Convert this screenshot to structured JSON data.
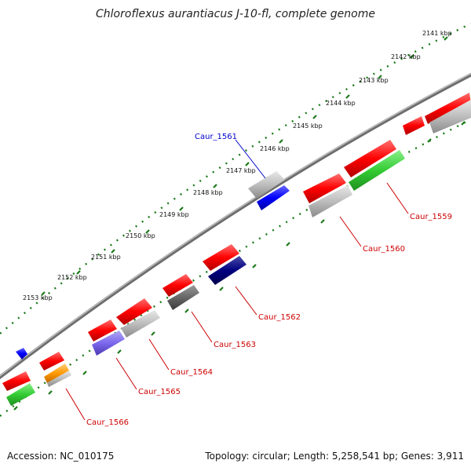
{
  "title": "Chloroflexus aurantiacus J-10-fl, complete genome",
  "footer": {
    "accession": "Accession: NC_010175",
    "topology": "Topology: circular; Length: 5,258,541 bp; Genes: 3,911"
  },
  "colors": {
    "backbone": "#808080",
    "tick_outer": "#1a7a1a",
    "tick_inner": "#1a7a1a",
    "label_red": "#cc0000",
    "label_blue": "#0000cc"
  },
  "ticks": [
    {
      "label": "2141 kbp"
    },
    {
      "label": "2142 kbp"
    },
    {
      "label": "2143 kbp"
    },
    {
      "label": "2144 kbp"
    },
    {
      "label": "2145 kbp"
    },
    {
      "label": "2146 kbp"
    },
    {
      "label": "2147 kbp"
    },
    {
      "label": "2148 kbp"
    },
    {
      "label": "2149 kbp"
    },
    {
      "label": "2150 kbp"
    },
    {
      "label": "2151 kbp"
    },
    {
      "label": "2152 kbp"
    },
    {
      "label": "2153 kbp"
    }
  ],
  "gene_labels": [
    {
      "id": "Caur_1561",
      "color": "blue"
    },
    {
      "id": "Caur_1559",
      "color": "red"
    },
    {
      "id": "Caur_1560",
      "color": "red"
    },
    {
      "id": "Caur_1562",
      "color": "red"
    },
    {
      "id": "Caur_1563",
      "color": "red"
    },
    {
      "id": "Caur_1564",
      "color": "red"
    },
    {
      "id": "Caur_1565",
      "color": "red"
    },
    {
      "id": "Caur_1566",
      "color": "red"
    }
  ]
}
